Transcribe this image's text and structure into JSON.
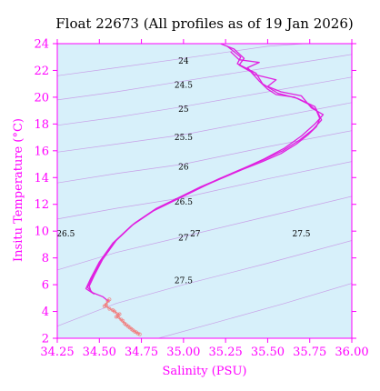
{
  "chart_data": {
    "type": "line",
    "title": "Float 22673  (All profiles as of 19 Jan 2026)",
    "xlabel": "Salinity (PSU)",
    "ylabel": "Insitu Temperature (°C)",
    "xlim": [
      34.25,
      36.0
    ],
    "ylim": [
      2,
      24
    ],
    "x_ticks": [
      "34.25",
      "34.50",
      "34.75",
      "35.00",
      "35.25",
      "35.50",
      "35.75",
      "36.00"
    ],
    "y_ticks": [
      "2",
      "4",
      "6",
      "8",
      "10",
      "12",
      "14",
      "16",
      "18",
      "20",
      "22",
      "24"
    ],
    "background_color": "#d7f0fa",
    "axis_color": "#ff00ff",
    "profile_color": "#e020e0",
    "deep_profile_color": "#f08080",
    "density_contour_color": "#c8a0e8",
    "density_contours": [
      {
        "label": "24",
        "label_s": 35.0,
        "label_t": 22.7,
        "points": [
          [
            34.25,
            21.6
          ],
          [
            34.6,
            22.2
          ],
          [
            35.0,
            22.9
          ],
          [
            35.5,
            23.8
          ],
          [
            35.72,
            24.0
          ]
        ]
      },
      {
        "label": "24.5",
        "label_s": 35.0,
        "label_t": 20.9,
        "points": [
          [
            34.25,
            19.8
          ],
          [
            34.6,
            20.4
          ],
          [
            35.0,
            21.2
          ],
          [
            35.5,
            22.2
          ],
          [
            36.0,
            23.2
          ]
        ]
      },
      {
        "label": "25",
        "label_s": 35.0,
        "label_t": 19.1,
        "points": [
          [
            34.25,
            17.9
          ],
          [
            34.6,
            18.5
          ],
          [
            35.0,
            19.3
          ],
          [
            35.5,
            20.4
          ],
          [
            36.0,
            21.5
          ]
        ]
      },
      {
        "label": "25.5",
        "label_s": 35.0,
        "label_t": 17.0,
        "points": [
          [
            34.25,
            15.9
          ],
          [
            34.6,
            16.5
          ],
          [
            35.0,
            17.2
          ],
          [
            35.5,
            18.4
          ],
          [
            36.0,
            19.6
          ]
        ]
      },
      {
        "label": "26",
        "label_s": 35.0,
        "label_t": 14.8,
        "points": [
          [
            34.25,
            13.6
          ],
          [
            34.6,
            14.3
          ],
          [
            35.0,
            15.0
          ],
          [
            35.5,
            16.3
          ],
          [
            36.0,
            17.5
          ]
        ]
      },
      {
        "label": "26.5",
        "label_s": 35.0,
        "label_t": 12.2,
        "points": [
          [
            34.25,
            10.9
          ],
          [
            34.6,
            11.7
          ],
          [
            35.0,
            12.5
          ],
          [
            35.5,
            13.9
          ],
          [
            36.0,
            15.2
          ]
        ]
      },
      {
        "label": "26.5",
        "label_s": 34.3,
        "label_t": 9.8,
        "points": []
      },
      {
        "label": "27",
        "label_s": 35.0,
        "label_t": 9.5,
        "points": [
          [
            34.25,
            7.1
          ],
          [
            34.6,
            8.4
          ],
          [
            35.0,
            9.6
          ],
          [
            35.5,
            11.1
          ],
          [
            36.0,
            12.6
          ]
        ]
      },
      {
        "label": "27",
        "label_s": 35.07,
        "label_t": 9.8,
        "points": []
      },
      {
        "label": "27.5",
        "label_s": 35.0,
        "label_t": 6.3,
        "points": [
          [
            34.25,
            2.9
          ],
          [
            34.6,
            4.6
          ],
          [
            35.0,
            6.0
          ],
          [
            35.5,
            7.6
          ],
          [
            36.0,
            9.3
          ]
        ]
      },
      {
        "label": "27.5",
        "label_s": 35.7,
        "label_t": 9.8,
        "points": []
      },
      {
        "label": "",
        "label_s": null,
        "label_t": null,
        "points": [
          [
            34.85,
            2.0
          ],
          [
            35.2,
            3.2
          ],
          [
            35.6,
            4.6
          ],
          [
            36.0,
            6.1
          ]
        ]
      }
    ],
    "series": [
      {
        "style": "main",
        "values": [
          [
            35.22,
            24.0
          ],
          [
            35.3,
            23.6
          ],
          [
            35.36,
            22.9
          ],
          [
            35.33,
            22.4
          ],
          [
            35.4,
            21.9
          ],
          [
            35.45,
            21.2
          ],
          [
            35.5,
            20.6
          ],
          [
            35.55,
            20.2
          ],
          [
            35.66,
            20.0
          ],
          [
            35.74,
            19.5
          ],
          [
            35.79,
            19.0
          ],
          [
            35.81,
            18.4
          ],
          [
            35.79,
            17.8
          ],
          [
            35.74,
            17.2
          ],
          [
            35.67,
            16.5
          ],
          [
            35.58,
            15.8
          ],
          [
            35.47,
            15.2
          ],
          [
            35.35,
            14.6
          ],
          [
            35.22,
            13.9
          ],
          [
            35.09,
            13.2
          ],
          [
            34.96,
            12.4
          ],
          [
            34.83,
            11.6
          ],
          [
            34.7,
            10.5
          ],
          [
            34.59,
            9.2
          ],
          [
            34.51,
            7.8
          ],
          [
            34.46,
            6.6
          ],
          [
            34.43,
            5.8
          ],
          [
            34.46,
            5.4
          ],
          [
            34.52,
            5.1
          ],
          [
            34.56,
            4.7
          ]
        ]
      },
      {
        "style": "main",
        "values": [
          [
            35.28,
            23.4
          ],
          [
            35.33,
            22.8
          ],
          [
            35.45,
            22.6
          ],
          [
            35.38,
            22.2
          ],
          [
            35.42,
            21.7
          ],
          [
            35.55,
            21.3
          ],
          [
            35.5,
            20.8
          ],
          [
            35.58,
            20.4
          ],
          [
            35.7,
            20.1
          ],
          [
            35.76,
            19.2
          ],
          [
            35.83,
            18.7
          ],
          [
            35.78,
            18.0
          ],
          [
            35.7,
            17.1
          ],
          [
            35.6,
            16.2
          ],
          [
            35.48,
            15.4
          ],
          [
            35.36,
            14.7
          ],
          [
            35.23,
            14.0
          ],
          [
            35.1,
            13.3
          ],
          [
            34.97,
            12.5
          ],
          [
            34.84,
            11.7
          ],
          [
            34.71,
            10.6
          ],
          [
            34.6,
            9.3
          ],
          [
            34.52,
            7.9
          ],
          [
            34.47,
            6.7
          ],
          [
            34.44,
            5.9
          ],
          [
            34.45,
            5.5
          ]
        ]
      },
      {
        "style": "main",
        "values": [
          [
            35.26,
            23.8
          ],
          [
            35.34,
            23.0
          ],
          [
            35.32,
            22.5
          ],
          [
            35.43,
            21.8
          ],
          [
            35.47,
            21.0
          ],
          [
            35.56,
            20.3
          ],
          [
            35.68,
            19.9
          ],
          [
            35.78,
            19.3
          ],
          [
            35.82,
            18.3
          ],
          [
            35.77,
            17.6
          ],
          [
            35.69,
            16.8
          ],
          [
            35.59,
            16.0
          ],
          [
            35.47,
            15.3
          ],
          [
            35.34,
            14.6
          ],
          [
            35.21,
            13.9
          ],
          [
            35.08,
            13.1
          ],
          [
            34.95,
            12.3
          ],
          [
            34.82,
            11.5
          ],
          [
            34.69,
            10.4
          ],
          [
            34.58,
            9.1
          ],
          [
            34.5,
            7.7
          ],
          [
            34.45,
            6.5
          ],
          [
            34.42,
            5.7
          ],
          [
            34.47,
            5.3
          ]
        ]
      },
      {
        "style": "deep",
        "values": [
          [
            34.56,
            4.9
          ],
          [
            34.54,
            4.5
          ],
          [
            34.56,
            4.2
          ],
          [
            34.59,
            4.0
          ],
          [
            34.61,
            3.7
          ],
          [
            34.63,
            3.4
          ],
          [
            34.65,
            3.1
          ],
          [
            34.67,
            2.9
          ],
          [
            34.69,
            2.7
          ],
          [
            34.71,
            2.5
          ],
          [
            34.73,
            2.35
          ]
        ]
      },
      {
        "style": "deep",
        "values": [
          [
            34.55,
            4.8
          ],
          [
            34.53,
            4.4
          ],
          [
            34.58,
            4.1
          ],
          [
            34.62,
            3.8
          ],
          [
            34.6,
            3.6
          ],
          [
            34.64,
            3.3
          ],
          [
            34.66,
            3.0
          ],
          [
            34.68,
            2.8
          ],
          [
            34.7,
            2.6
          ],
          [
            34.72,
            2.45
          ],
          [
            34.74,
            2.3
          ]
        ]
      }
    ]
  }
}
